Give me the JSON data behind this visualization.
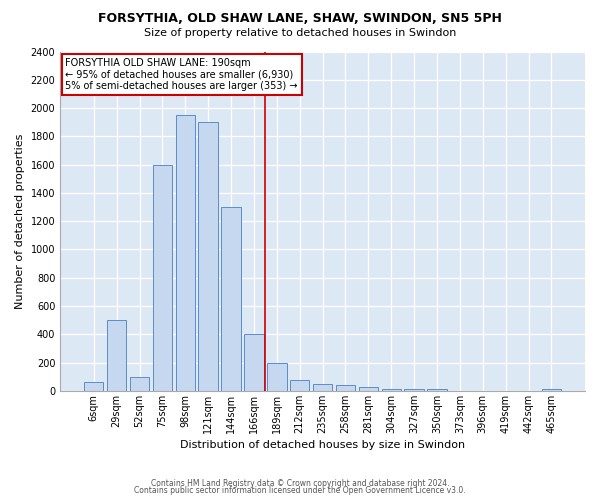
{
  "title1": "FORSYTHIA, OLD SHAW LANE, SHAW, SWINDON, SN5 5PH",
  "title2": "Size of property relative to detached houses in Swindon",
  "xlabel": "Distribution of detached houses by size in Swindon",
  "ylabel": "Number of detached properties",
  "bar_labels": [
    "6sqm",
    "29sqm",
    "52sqm",
    "75sqm",
    "98sqm",
    "121sqm",
    "144sqm",
    "166sqm",
    "189sqm",
    "212sqm",
    "235sqm",
    "258sqm",
    "281sqm",
    "304sqm",
    "327sqm",
    "350sqm",
    "373sqm",
    "396sqm",
    "419sqm",
    "442sqm",
    "465sqm"
  ],
  "bar_values": [
    60,
    500,
    100,
    1600,
    1950,
    1900,
    1300,
    400,
    200,
    80,
    50,
    40,
    30,
    10,
    10,
    10,
    0,
    0,
    0,
    0,
    10
  ],
  "annotation_title": "FORSYTHIA OLD SHAW LANE: 190sqm",
  "annotation_line1": "← 95% of detached houses are smaller (6,930)",
  "annotation_line2": "5% of semi-detached houses are larger (353) →",
  "bar_color": "#c5d8f0",
  "bar_edge_color": "#5b8dc8",
  "line_color": "#cc0000",
  "annotation_box_edge": "#cc0000",
  "background_color": "#dde8f5",
  "ylim": [
    0,
    2400
  ],
  "yticks": [
    0,
    200,
    400,
    600,
    800,
    1000,
    1200,
    1400,
    1600,
    1800,
    2000,
    2200,
    2400
  ],
  "red_line_idx": 8,
  "footnote1": "Contains HM Land Registry data © Crown copyright and database right 2024.",
  "footnote2": "Contains public sector information licensed under the Open Government Licence v3.0."
}
